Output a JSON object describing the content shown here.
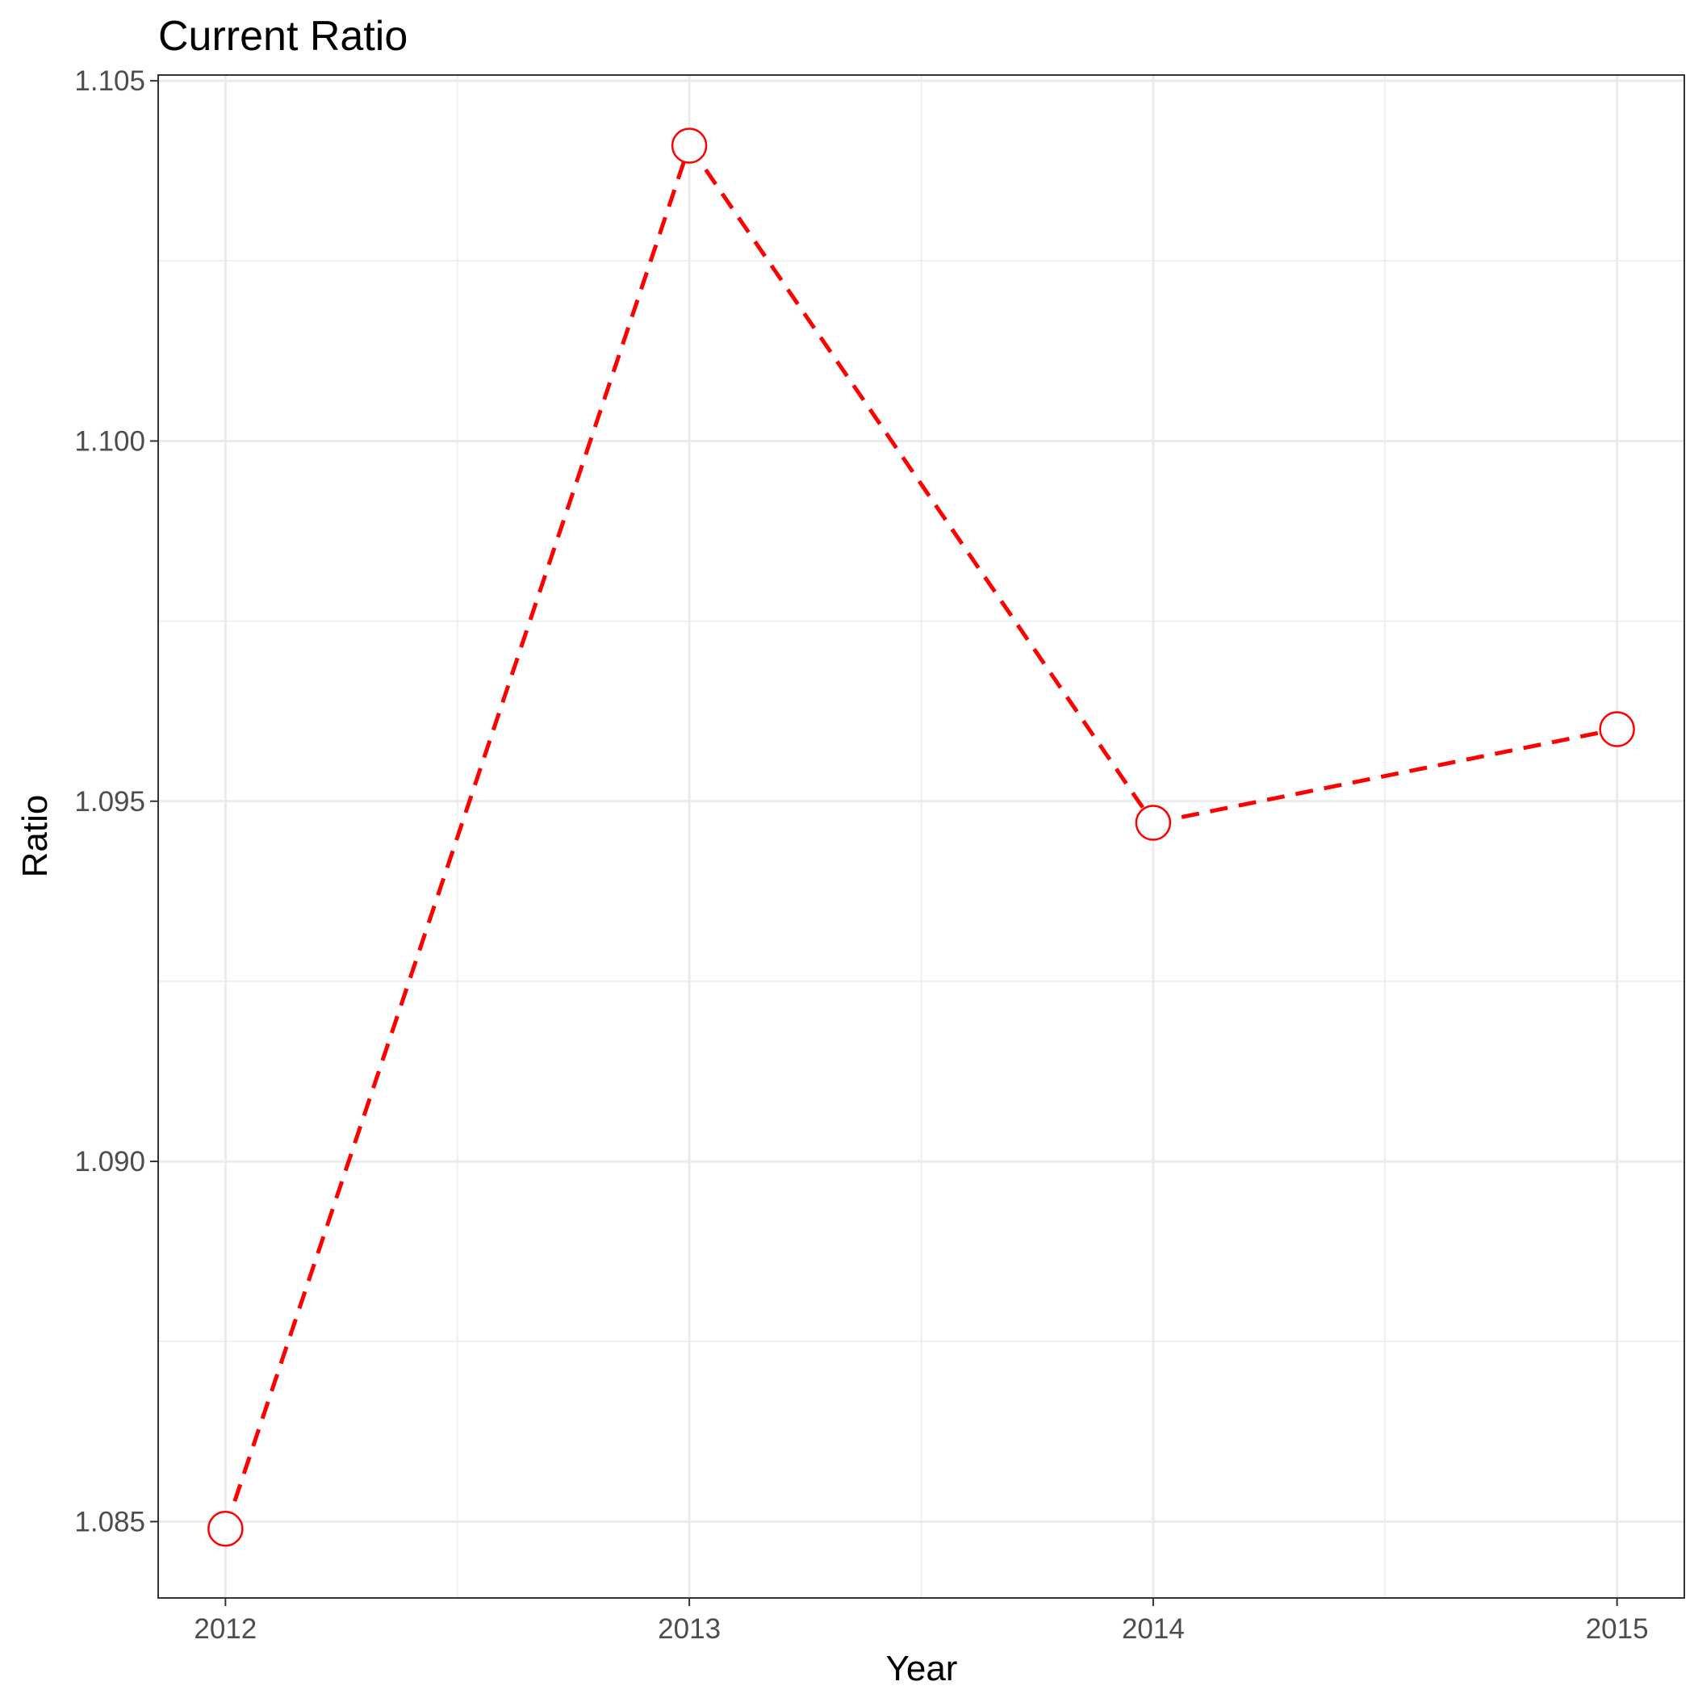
{
  "chart_data": {
    "type": "line",
    "title": "Current Ratio",
    "xlabel": "Year",
    "ylabel": "Ratio",
    "x": [
      2012,
      2013,
      2014,
      2015
    ],
    "series": [
      {
        "values": [
          1.0849,
          1.1041,
          1.0947,
          1.096
        ],
        "color": "#ff0000",
        "line_style": "dashed",
        "marker": "open-circle",
        "marker_fill": "#ffffff"
      }
    ],
    "xlim": [
      2011.855,
      2015.145
    ],
    "ylim": [
      1.08394,
      1.10508
    ],
    "x_ticks": [
      "2012",
      "2013",
      "2014",
      "2015"
    ],
    "y_ticks": [
      "1.085",
      "1.090",
      "1.095",
      "1.100",
      "1.105"
    ],
    "grid": true,
    "theme": "bw",
    "panel_border_color": "#333333",
    "grid_color": "#ebebeb"
  }
}
